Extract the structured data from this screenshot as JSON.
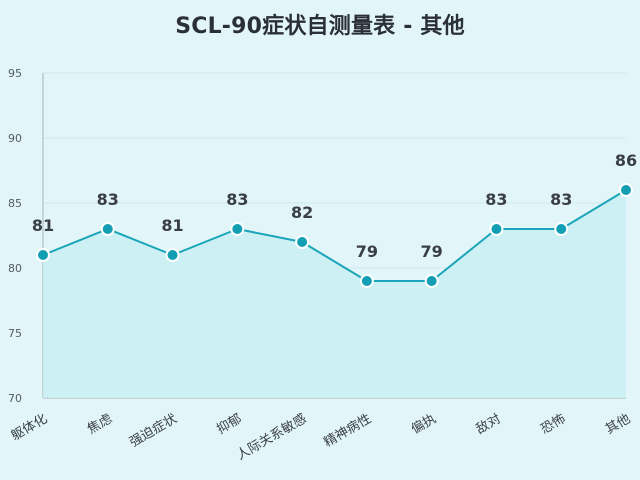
{
  "chart_data": {
    "type": "area",
    "title": "SCL-90症状自测量表 - 其他",
    "xlabel": "",
    "ylabel": "",
    "categories": [
      "躯体化",
      "焦虑",
      "强迫症状",
      "抑郁",
      "人际关系敏感",
      "精神病性",
      "偏执",
      "敌对",
      "恐怖",
      "其他"
    ],
    "values": [
      81,
      83,
      81,
      83,
      82,
      79,
      79,
      83,
      83,
      86
    ],
    "ylim": [
      70,
      95
    ],
    "yticks": [
      70,
      75,
      80,
      85,
      90,
      95
    ],
    "grid": true,
    "legend": "none",
    "data_labels": true
  },
  "colors": {
    "background": "#e2f6f9",
    "line": "#1ba5b8",
    "marker": "#139fb3",
    "marker_stroke": "#ffffff",
    "area_fill": "#c8eef2",
    "grid": "#cdeaee",
    "axis": "#b9c9cd"
  }
}
